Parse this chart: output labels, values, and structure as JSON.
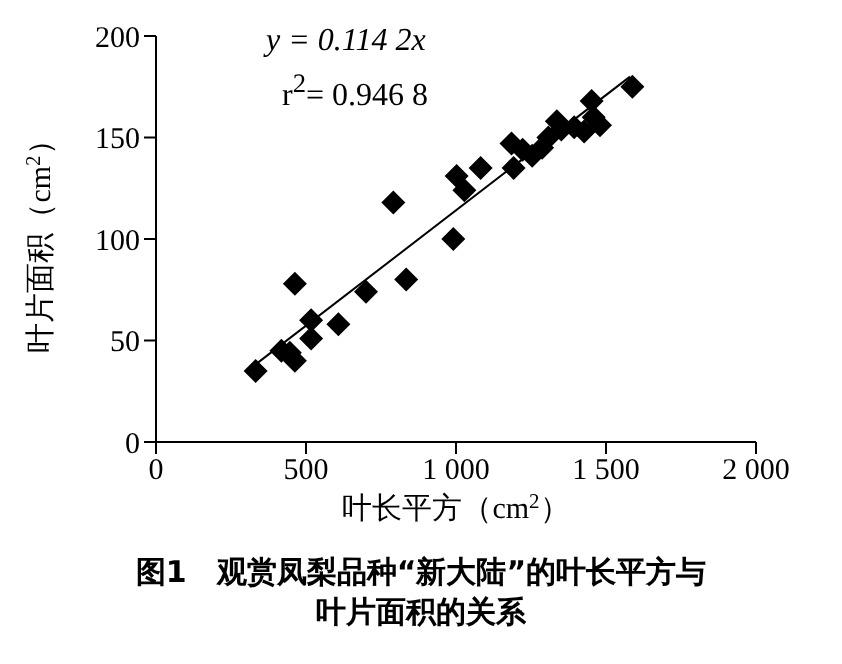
{
  "chart_data": {
    "type": "scatter",
    "title": "图1　观赏凤梨品种“新大陆”的叶长平方与叶片面积的关系",
    "xlabel": "叶长平方（cm$^{2}$）",
    "ylabel": "叶片面积（cm$^{2}$）",
    "annotations": [
      "y = 0.114 2x",
      "r$^{2}$= 0.946 8"
    ],
    "xlim": [
      0,
      2000
    ],
    "xticks": [
      0,
      500,
      {
        "value": 1000,
        "label": "1 000"
      },
      {
        "value": 1500,
        "label": "1 500"
      },
      {
        "value": 2000,
        "label": "2 000"
      }
    ],
    "ylim": [
      0,
      200
    ],
    "yticks": [
      0,
      50,
      100,
      150,
      200
    ],
    "marker": "diamond",
    "series": [
      {
        "color": "#000000",
        "x": [
          332,
          418,
          446,
          463,
          463,
          517,
          517,
          608,
          700,
          791,
          834,
          991,
          1002,
          1028,
          1082,
          1185,
          1192,
          1222,
          1254,
          1287,
          1308,
          1336,
          1351,
          1394,
          1427,
          1452,
          1459,
          1480,
          1588
        ],
        "values": [
          35,
          45,
          44,
          40,
          78,
          60,
          51,
          58,
          74,
          118,
          80,
          100,
          131,
          124,
          135,
          147,
          135,
          144,
          141,
          145,
          150,
          158,
          154,
          155,
          153,
          168,
          160,
          156,
          175
        ]
      },
      {
        "type": "line",
        "marker": "none",
        "color": "#000000",
        "x": [
          330,
          1580
        ],
        "values": [
          38,
          180
        ]
      }
    ]
  }
}
